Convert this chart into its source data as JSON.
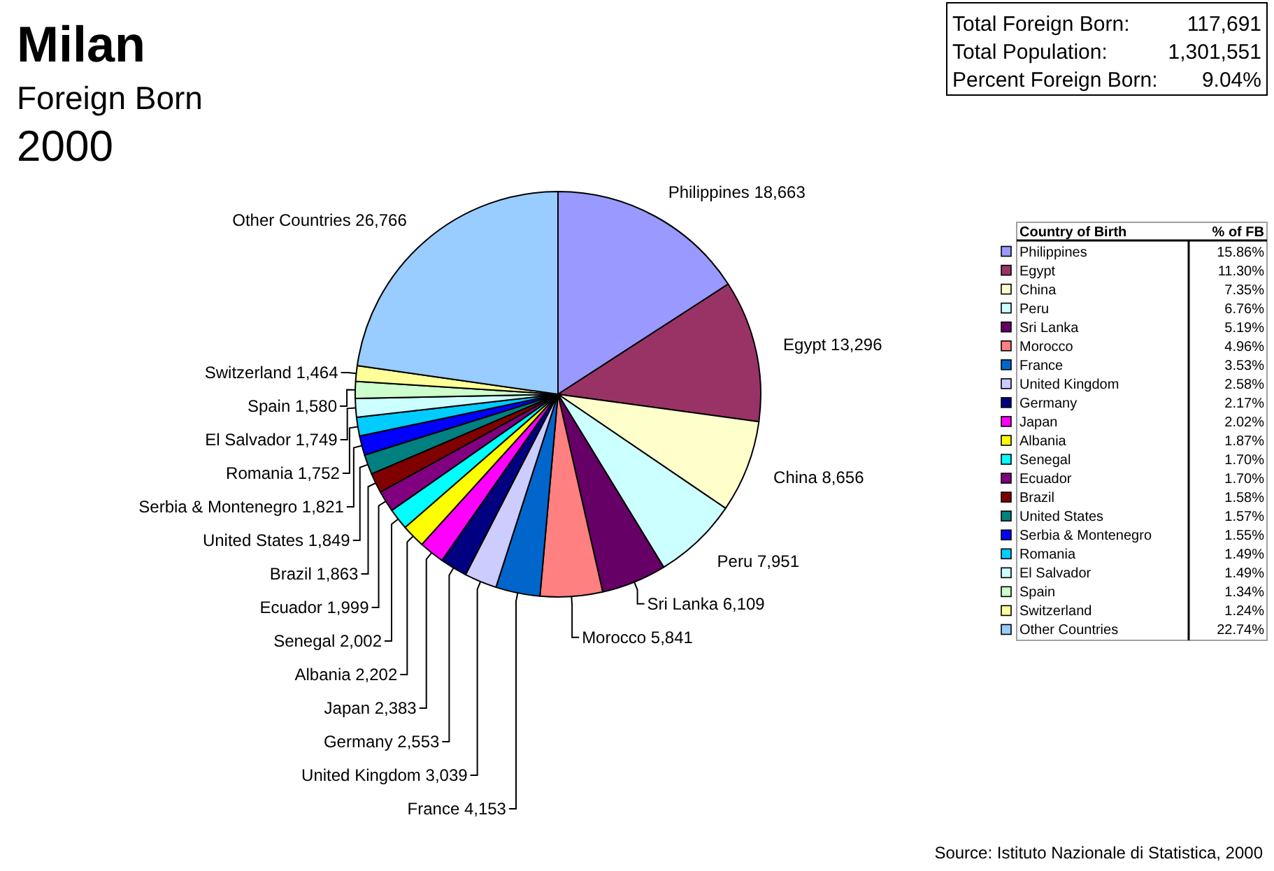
{
  "chart_data": [
    {
      "type": "pie",
      "title": "Milan",
      "subtitle": "Foreign Born",
      "legend": "right",
      "legend_title": "Country of Birth",
      "categories": [
        "Philippines",
        "Egypt",
        "China",
        "Peru",
        "Sri Lanka",
        "Morocco",
        "France",
        "United Kingdom",
        "Germany",
        "Japan",
        "Albania",
        "Senegal",
        "Ecuador",
        "Brazil",
        "United States",
        "Serbia & Montenegro",
        "Romania",
        "El Salvador",
        "Spain",
        "Switzerland",
        "Other Countries"
      ],
      "values": [
        18663,
        13296,
        8656,
        7951,
        6109,
        5841,
        4153,
        3039,
        2553,
        2383,
        2202,
        2002,
        1999,
        1863,
        1849,
        1821,
        1752,
        1749,
        1580,
        1464,
        26766
      ],
      "value_labels": [
        "18,663",
        "13,296",
        "8,656",
        "7,951",
        "6,109",
        "5,841",
        "4,153",
        "3,039",
        "2,553",
        "2,383",
        "2,202",
        "2,002",
        "1,999",
        "1,863",
        "1,849",
        "1,821",
        "1,752",
        "1,749",
        "1,580",
        "1,464",
        "26,766"
      ],
      "colors": [
        "#9999ff",
        "#993366",
        "#ffffcc",
        "#ccffff",
        "#660066",
        "#ff8080",
        "#0066cc",
        "#ccccff",
        "#000080",
        "#ff00ff",
        "#ffff00",
        "#00ffff",
        "#800080",
        "#800000",
        "#008080",
        "#0000ff",
        "#00ccff",
        "#ccffff",
        "#ccffcc",
        "#ffff99",
        "#99ccff"
      ],
      "annotations": [
        "2000",
        "Source: Istituto Nazionale di Statistica, 2000",
        "% of FB",
        "15.86%",
        "11.30%",
        "7.35%",
        "6.76%",
        "5.19%",
        "4.96%",
        "3.53%",
        "2.58%",
        "2.17%",
        "2.02%",
        "1.87%",
        "1.70%",
        "1.70%",
        "1.58%",
        "1.57%",
        "1.55%",
        "1.49%",
        "1.49%",
        "1.34%",
        "1.24%",
        "22.74%"
      ]
    },
    {
      "type": "other",
      "annotations": [
        "Total Foreign Born:",
        "117,691",
        "Total Population:",
        "1,301,551",
        "Percent Foreign Born:",
        "9.04%"
      ]
    }
  ]
}
